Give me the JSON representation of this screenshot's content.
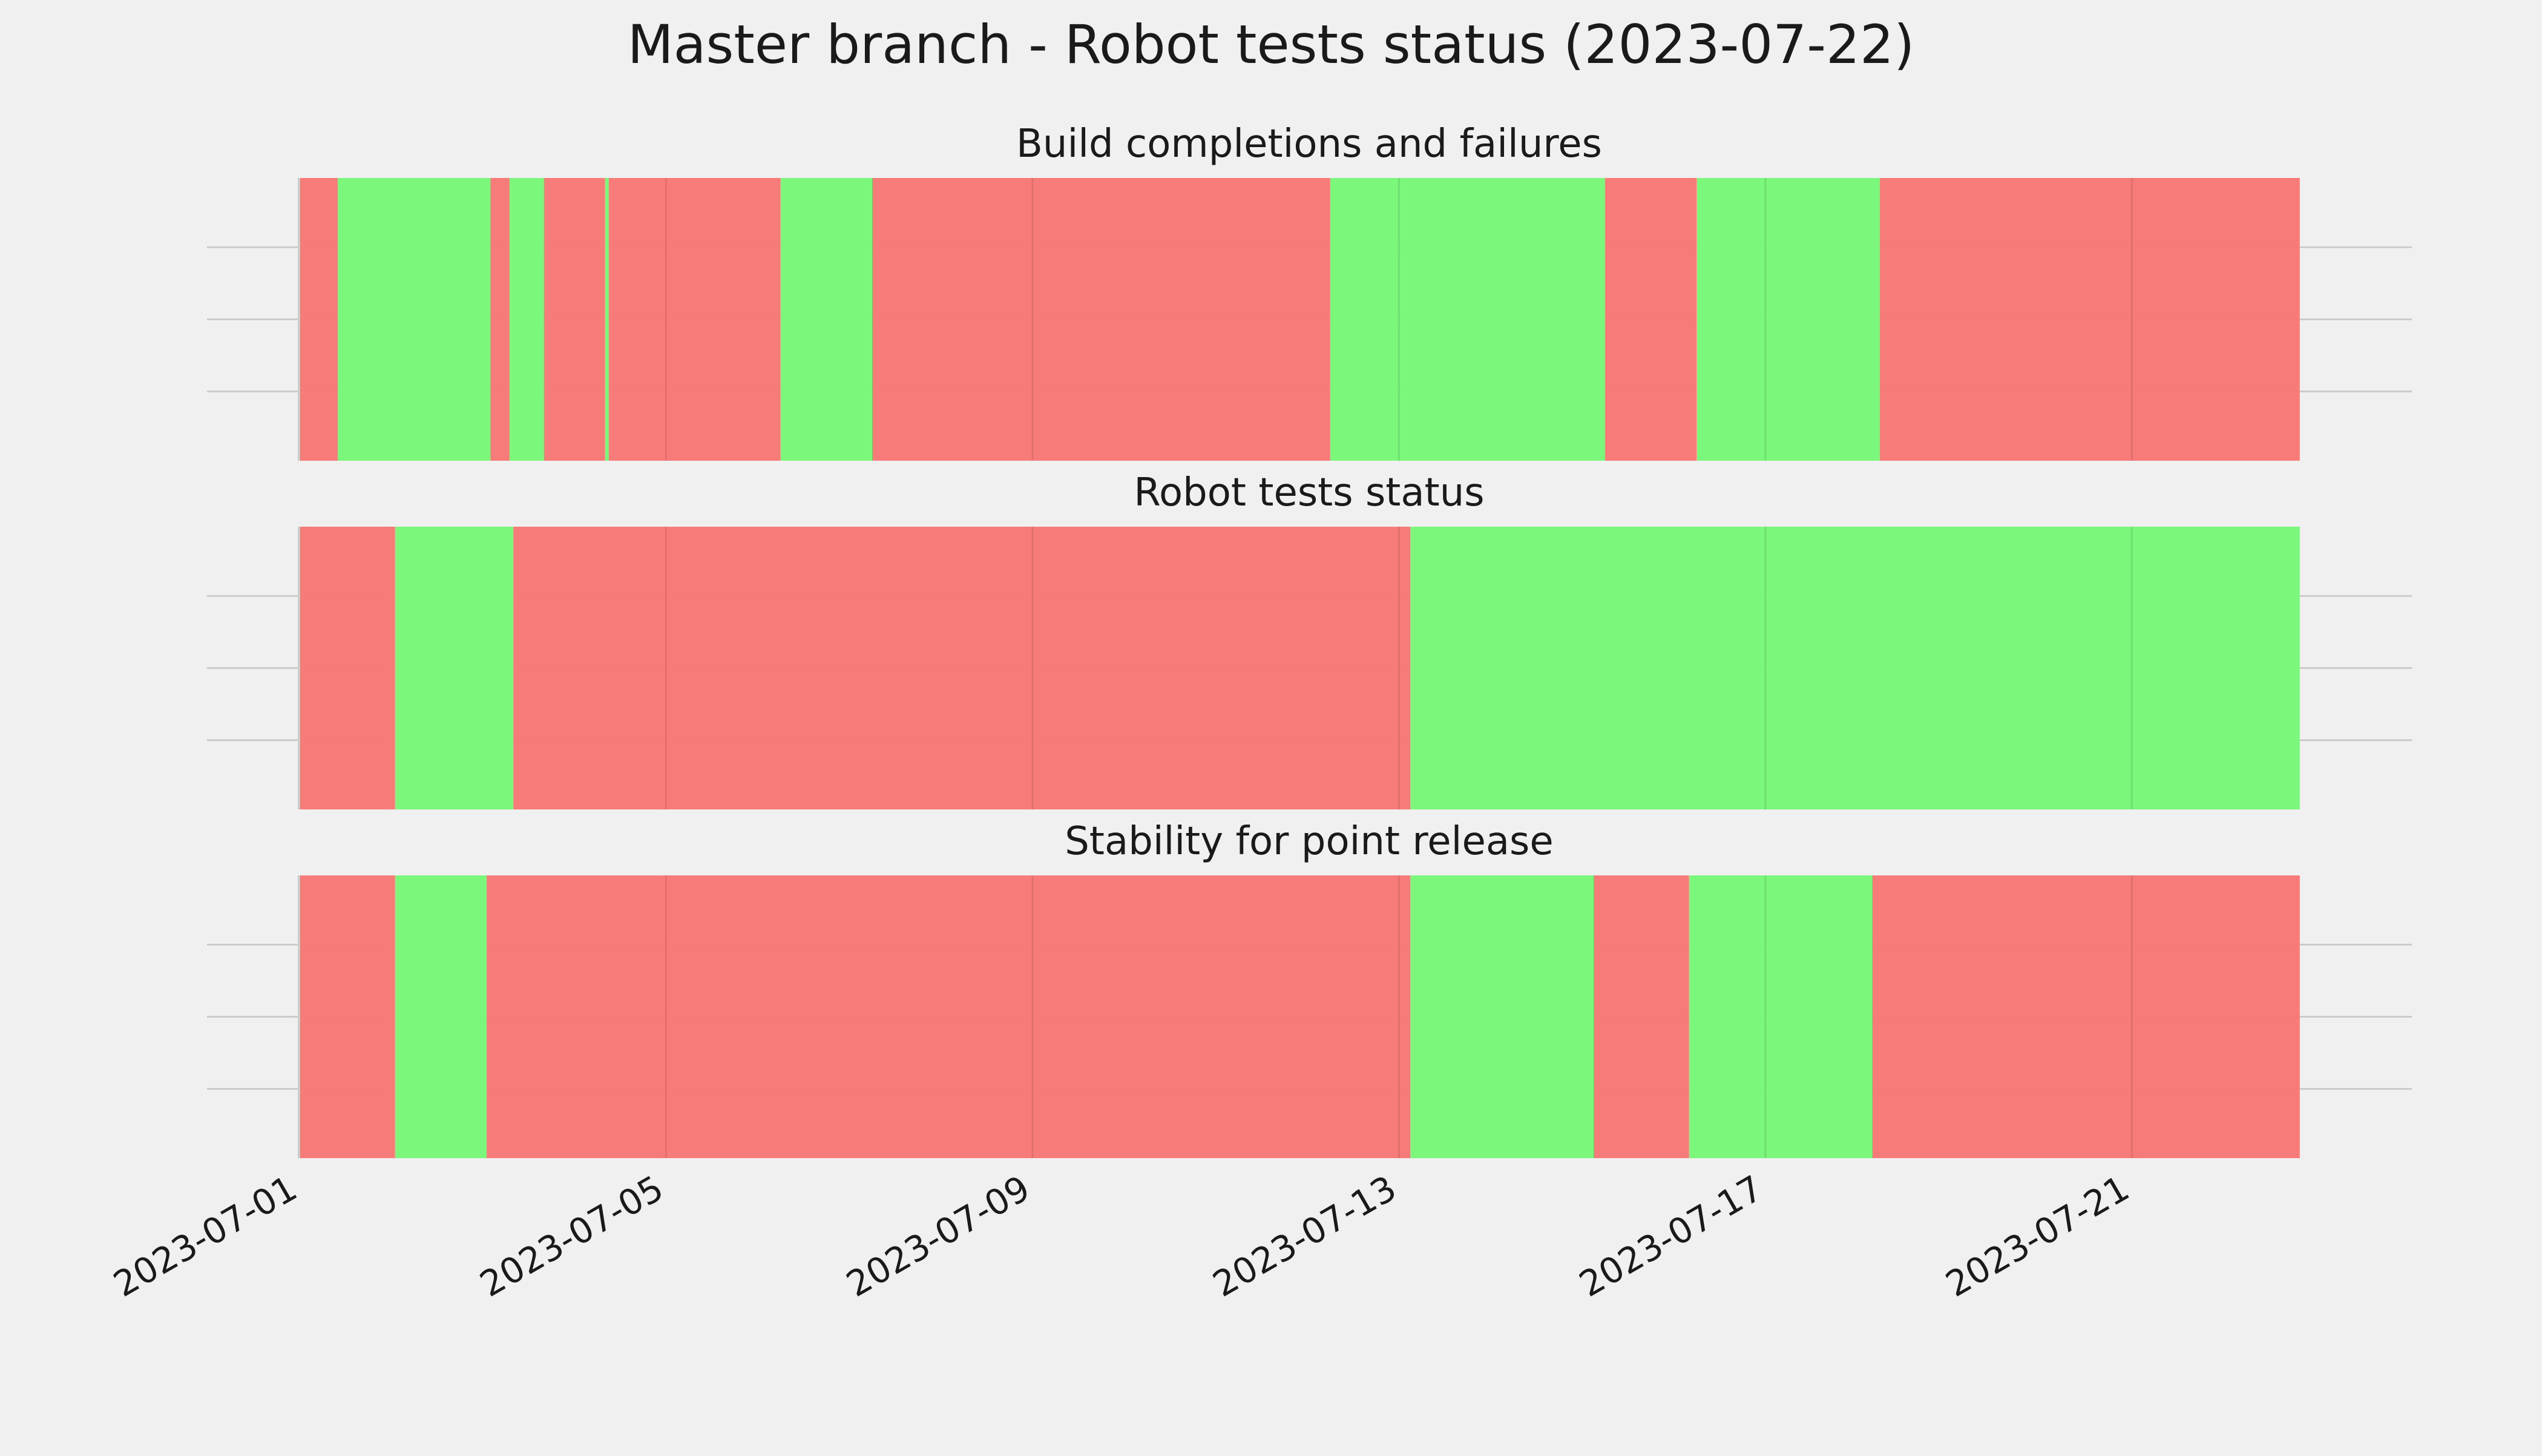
{
  "chart_data": {
    "type": "timeline",
    "title": "Master branch - Robot tests status (2023-07-22)",
    "x_axis": {
      "type": "date",
      "range": [
        "2023-07-01",
        "2023-07-23"
      ],
      "ticks": [
        "2023-07-01",
        "2023-07-05",
        "2023-07-09",
        "2023-07-13",
        "2023-07-17",
        "2023-07-21"
      ]
    },
    "grid": true,
    "status_colors": {
      "fail": "#f77774",
      "pass": "#77f777"
    },
    "panels": [
      {
        "title": "Build completions and failures",
        "segments": [
          {
            "start": "2023-07-01 00:00",
            "end": "2023-07-01 10:00",
            "status": "fail"
          },
          {
            "start": "2023-07-01 10:00",
            "end": "2023-07-03 02:00",
            "status": "pass"
          },
          {
            "start": "2023-07-03 02:00",
            "end": "2023-07-03 07:00",
            "status": "fail"
          },
          {
            "start": "2023-07-03 07:00",
            "end": "2023-07-03 16:00",
            "status": "pass"
          },
          {
            "start": "2023-07-03 16:00",
            "end": "2023-07-04 08:00",
            "status": "fail"
          },
          {
            "start": "2023-07-04 08:00",
            "end": "2023-07-04 09:00",
            "status": "pass"
          },
          {
            "start": "2023-07-04 09:00",
            "end": "2023-07-06 06:00",
            "status": "fail"
          },
          {
            "start": "2023-07-06 06:00",
            "end": "2023-07-07 06:00",
            "status": "pass"
          },
          {
            "start": "2023-07-07 06:00",
            "end": "2023-07-12 06:00",
            "status": "fail"
          },
          {
            "start": "2023-07-12 06:00",
            "end": "2023-07-15 06:00",
            "status": "pass"
          },
          {
            "start": "2023-07-15 06:00",
            "end": "2023-07-16 06:00",
            "status": "fail"
          },
          {
            "start": "2023-07-16 06:00",
            "end": "2023-07-18 06:00",
            "status": "pass"
          },
          {
            "start": "2023-07-18 06:00",
            "end": "2023-07-22 20:00",
            "status": "fail"
          }
        ]
      },
      {
        "title": "Robot tests status",
        "segments": [
          {
            "start": "2023-07-01 00:00",
            "end": "2023-07-02 01:00",
            "status": "fail"
          },
          {
            "start": "2023-07-02 01:00",
            "end": "2023-07-03 08:00",
            "status": "pass"
          },
          {
            "start": "2023-07-03 08:00",
            "end": "2023-07-13 03:00",
            "status": "fail"
          },
          {
            "start": "2023-07-13 03:00",
            "end": "2023-07-22 20:00",
            "status": "pass"
          }
        ]
      },
      {
        "title": "Stability for point release",
        "segments": [
          {
            "start": "2023-07-01 00:00",
            "end": "2023-07-02 01:00",
            "status": "fail"
          },
          {
            "start": "2023-07-02 01:00",
            "end": "2023-07-03 01:00",
            "status": "pass"
          },
          {
            "start": "2023-07-03 01:00",
            "end": "2023-07-13 03:00",
            "status": "fail"
          },
          {
            "start": "2023-07-13 03:00",
            "end": "2023-07-15 03:00",
            "status": "pass"
          },
          {
            "start": "2023-07-15 03:00",
            "end": "2023-07-16 04:00",
            "status": "fail"
          },
          {
            "start": "2023-07-16 04:00",
            "end": "2023-07-18 04:00",
            "status": "pass"
          },
          {
            "start": "2023-07-18 04:00",
            "end": "2023-07-22 20:00",
            "status": "fail"
          }
        ]
      }
    ]
  }
}
